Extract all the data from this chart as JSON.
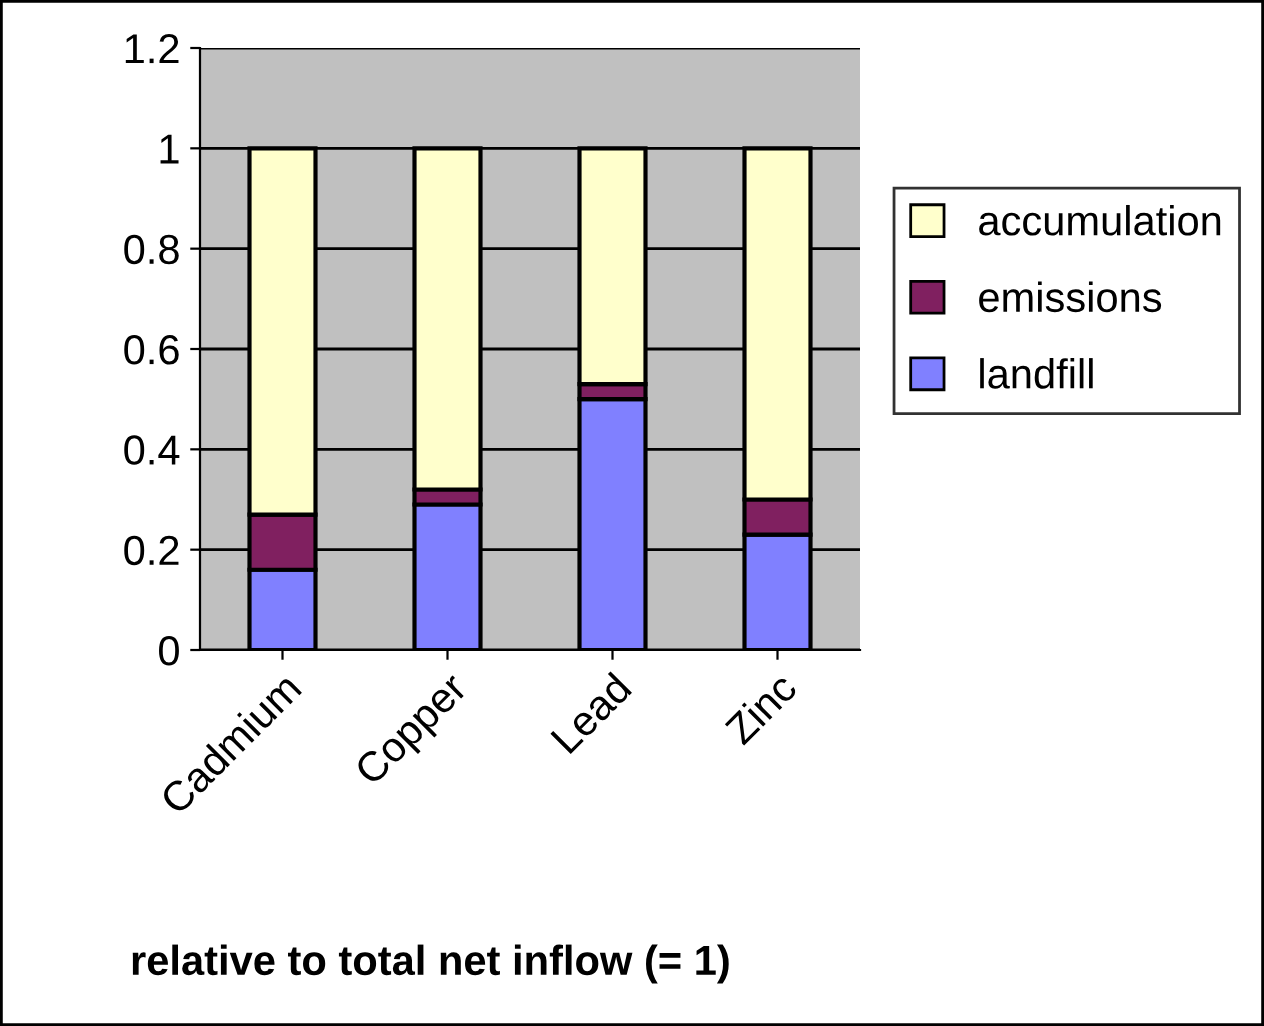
{
  "chart_data": {
    "type": "bar",
    "stacked": true,
    "xlabel": "relative to total net inflow (= 1)",
    "categories": [
      "Cadmium",
      "Copper",
      "Lead",
      "Zinc"
    ],
    "series": [
      {
        "name": "landfill",
        "color": "#8080ff",
        "values": [
          0.16,
          0.29,
          0.5,
          0.23
        ]
      },
      {
        "name": "emissions",
        "color": "#802060",
        "values": [
          0.11,
          0.03,
          0.03,
          0.07
        ]
      },
      {
        "name": "accumulation",
        "color": "#ffffcc",
        "values": [
          0.73,
          0.68,
          0.47,
          0.7
        ]
      }
    ],
    "ylim": [
      0,
      1.2
    ],
    "yticks": [
      0,
      0.2,
      0.4,
      0.6,
      0.8,
      1,
      1.2
    ],
    "grid": "y",
    "legend": "right"
  }
}
